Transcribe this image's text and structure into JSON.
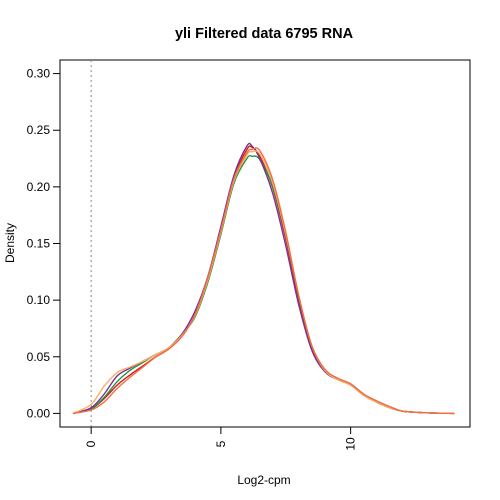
{
  "chart_data": {
    "type": "line",
    "title": "yli  Filtered data 6795  RNA",
    "xlabel": "Log2-cpm",
    "ylabel": "Density",
    "xlim": [
      -1.2,
      14.6
    ],
    "ylim": [
      -0.012,
      0.312
    ],
    "x_ticks": [
      0,
      5,
      10
    ],
    "y_ticks": [
      0.0,
      0.05,
      0.1,
      0.15,
      0.2,
      0.25,
      0.3
    ],
    "x_tick_labels": [
      "0",
      "5",
      "10"
    ],
    "y_tick_labels": [
      "0.00",
      "0.05",
      "0.10",
      "0.15",
      "0.20",
      "0.25",
      "0.30"
    ],
    "reference_line_x": 0,
    "series": [
      {
        "color": "#d7191c",
        "x": [
          -0.7,
          0,
          0.5,
          1,
          1.5,
          2,
          2.5,
          3,
          3.5,
          4,
          4.5,
          5,
          5.5,
          6,
          6.2,
          6.5,
          7,
          7.5,
          8,
          8.5,
          9,
          9.5,
          10,
          10.5,
          11,
          11.5,
          12,
          13,
          14
        ],
        "y": [
          0.0,
          0.004,
          0.013,
          0.025,
          0.034,
          0.042,
          0.05,
          0.057,
          0.068,
          0.087,
          0.12,
          0.163,
          0.208,
          0.233,
          0.235,
          0.227,
          0.199,
          0.154,
          0.1,
          0.058,
          0.038,
          0.03,
          0.025,
          0.016,
          0.01,
          0.005,
          0.002,
          0.0005,
          0.0
        ]
      },
      {
        "color": "#1a9641",
        "x": [
          -0.7,
          0,
          0.5,
          1,
          1.5,
          2,
          2.5,
          3,
          3.5,
          4,
          4.5,
          5,
          5.5,
          6,
          6.2,
          6.5,
          7,
          7.5,
          8,
          8.5,
          9,
          9.5,
          10,
          10.5,
          11,
          11.5,
          12,
          13,
          14
        ],
        "y": [
          0.0,
          0.004,
          0.014,
          0.028,
          0.038,
          0.045,
          0.052,
          0.058,
          0.07,
          0.085,
          0.116,
          0.158,
          0.203,
          0.225,
          0.227,
          0.224,
          0.2,
          0.157,
          0.103,
          0.06,
          0.039,
          0.031,
          0.026,
          0.017,
          0.01,
          0.005,
          0.002,
          0.0005,
          0.0
        ]
      },
      {
        "color": "#7b3294",
        "x": [
          -0.7,
          0,
          0.5,
          1,
          1.5,
          2,
          2.5,
          3,
          3.5,
          4,
          4.5,
          5,
          5.5,
          6,
          6.2,
          6.5,
          7,
          7.5,
          8,
          8.5,
          9,
          9.5,
          10,
          10.5,
          11,
          11.5,
          12,
          13,
          14
        ],
        "y": [
          0.0,
          0.005,
          0.017,
          0.033,
          0.04,
          0.046,
          0.052,
          0.058,
          0.07,
          0.09,
          0.121,
          0.165,
          0.21,
          0.236,
          0.236,
          0.225,
          0.194,
          0.148,
          0.096,
          0.056,
          0.037,
          0.03,
          0.026,
          0.017,
          0.011,
          0.006,
          0.002,
          0.0005,
          0.0
        ]
      },
      {
        "color": "#fdae61",
        "x": [
          -0.7,
          0,
          0.5,
          1,
          1.5,
          2,
          2.5,
          3,
          3.5,
          4,
          4.5,
          5,
          5.5,
          6,
          6.2,
          6.5,
          7,
          7.5,
          8,
          8.5,
          9,
          9.5,
          10,
          10.5,
          11,
          11.5,
          12,
          13,
          14
        ],
        "y": [
          0.0,
          0.008,
          0.024,
          0.036,
          0.041,
          0.046,
          0.052,
          0.058,
          0.069,
          0.086,
          0.118,
          0.16,
          0.205,
          0.228,
          0.231,
          0.229,
          0.203,
          0.158,
          0.104,
          0.06,
          0.038,
          0.03,
          0.025,
          0.016,
          0.01,
          0.005,
          0.002,
          0.0005,
          0.0
        ]
      },
      {
        "color": "#f46d43",
        "x": [
          -0.7,
          0,
          0.5,
          1,
          1.5,
          2,
          2.5,
          3,
          3.5,
          4,
          4.5,
          5,
          5.5,
          6,
          6.2,
          6.5,
          7,
          7.5,
          8,
          8.5,
          9,
          9.5,
          10,
          10.5,
          11,
          11.5,
          12,
          13,
          14
        ],
        "y": [
          0.0,
          0.003,
          0.01,
          0.022,
          0.032,
          0.041,
          0.05,
          0.057,
          0.068,
          0.087,
          0.12,
          0.162,
          0.207,
          0.23,
          0.233,
          0.232,
          0.206,
          0.16,
          0.104,
          0.06,
          0.039,
          0.031,
          0.026,
          0.017,
          0.011,
          0.006,
          0.002,
          0.0005,
          0.0
        ]
      }
    ]
  }
}
